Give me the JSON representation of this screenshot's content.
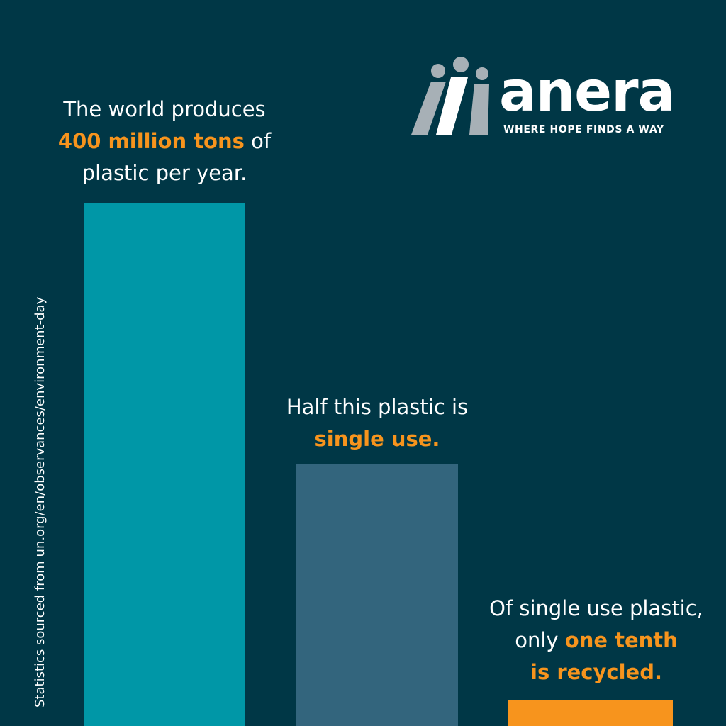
{
  "colors": {
    "background": "#003746",
    "accent": "#F7941D",
    "bar_1": "#0097A7",
    "bar_2": "#33657D",
    "bar_3": "#F7941D",
    "logo_gray": "#A7B0B6"
  },
  "logo": {
    "wordmark": "anera",
    "tagline": "WHERE HOPE FINDS A WAY",
    "icon": "anera-people-icon"
  },
  "source_note": "Statistics sourced from un.org/en/observances/environment-day",
  "labels": [
    {
      "lines": [
        [
          {
            "text": "The world produces",
            "highlight": false
          }
        ],
        [
          {
            "text": "400 million tons",
            "highlight": true
          },
          {
            "text": " of",
            "highlight": false
          }
        ],
        [
          {
            "text": "plastic per year.",
            "highlight": false
          }
        ]
      ]
    },
    {
      "lines": [
        [
          {
            "text": "Half this plastic is",
            "highlight": false
          }
        ],
        [
          {
            "text": "single use.",
            "highlight": true
          }
        ]
      ]
    },
    {
      "lines": [
        [
          {
            "text": "Of single use plastic,",
            "highlight": false
          }
        ],
        [
          {
            "text": "only ",
            "highlight": false
          },
          {
            "text": "one tenth",
            "highlight": true
          }
        ],
        [
          {
            "text": "is recycled.",
            "highlight": true
          }
        ]
      ]
    }
  ],
  "chart_data": {
    "type": "bar",
    "values": [
      400,
      200,
      20
    ],
    "ylim": [
      0,
      400
    ],
    "grid": false,
    "colors": [
      "#0097A7",
      "#33657D",
      "#F7941D"
    ]
  }
}
